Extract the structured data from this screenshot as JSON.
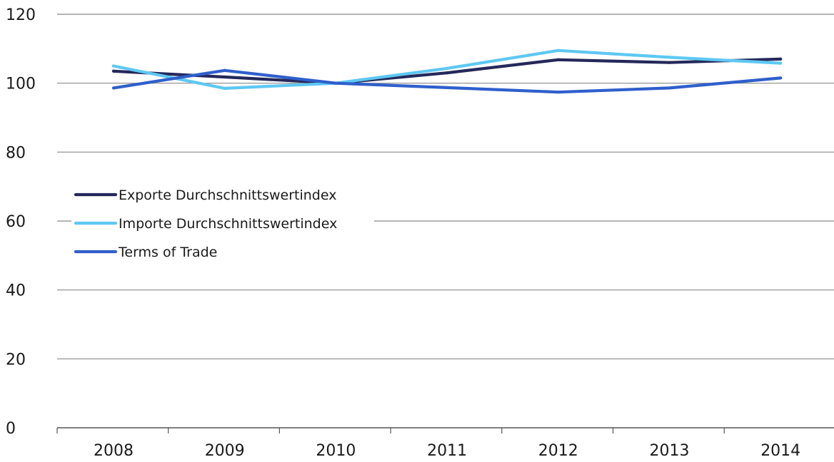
{
  "chart_data": {
    "type": "line",
    "title": "",
    "xlabel": "",
    "ylabel": "",
    "categories": [
      "2008",
      "2009",
      "2010",
      "2011",
      "2012",
      "2013",
      "2014"
    ],
    "ylim": [
      0,
      120
    ],
    "yticks": [
      0,
      20,
      40,
      60,
      80,
      100,
      120
    ],
    "grid": true,
    "legend_position": "left-middle",
    "series": [
      {
        "name": "Exporte Durchschnittswertindex",
        "color": "#24285a",
        "values": [
          103.5,
          101.8,
          100.0,
          103.0,
          106.8,
          106.0,
          107.0
        ]
      },
      {
        "name": "Importe Durchschnittswertindex",
        "color": "#5ec8f2",
        "values": [
          105.0,
          98.5,
          100.0,
          104.3,
          109.5,
          107.5,
          105.8
        ]
      },
      {
        "name": "Terms of Trade",
        "color": "#2f5fcc",
        "values": [
          98.6,
          103.7,
          100.0,
          98.7,
          97.4,
          98.6,
          101.5
        ]
      }
    ]
  }
}
